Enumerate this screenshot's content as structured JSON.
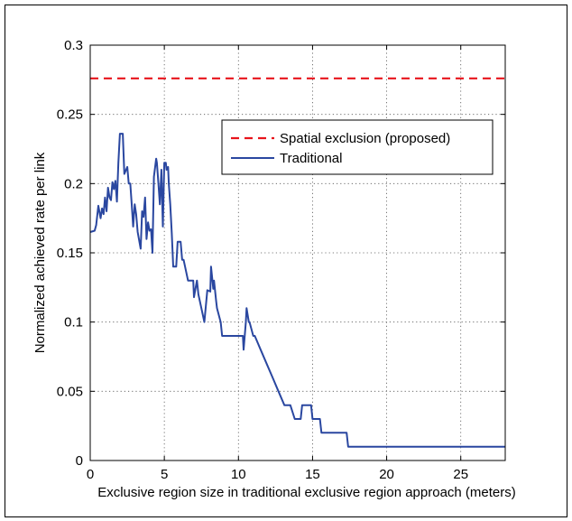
{
  "chart_data": {
    "type": "line",
    "xlabel": "Exclusive region size in traditional exclusive region approach (meters)",
    "ylabel": "Normalized achieved rate per link",
    "xlim": [
      0,
      28
    ],
    "ylim": [
      0,
      0.3
    ],
    "xticks": [
      0,
      5,
      10,
      15,
      20,
      25
    ],
    "xtick_labels": [
      "0",
      "5",
      "10",
      "15",
      "20",
      "25"
    ],
    "yticks": [
      0,
      0.05,
      0.1,
      0.15,
      0.2,
      0.25,
      0.3
    ],
    "ytick_labels": [
      "0",
      "0.05",
      "0.1",
      "0.15",
      "0.2",
      "0.25",
      "0.3"
    ],
    "grid": true,
    "legend_position": "upper-right",
    "series": [
      {
        "name": "Spatial exclusion (proposed)",
        "color": "#e8141c",
        "style": "dashed",
        "x": [
          0,
          28
        ],
        "y": [
          0.276,
          0.276
        ]
      },
      {
        "name": "Traditional",
        "color": "#2a47a0",
        "style": "solid",
        "x": [
          0,
          0.3,
          0.4,
          0.55,
          0.7,
          0.8,
          0.9,
          1.0,
          1.1,
          1.2,
          1.3,
          1.4,
          1.5,
          1.6,
          1.7,
          1.8,
          1.9,
          2.0,
          2.1,
          2.2,
          2.3,
          2.5,
          2.6,
          2.7,
          2.8,
          2.9,
          3.0,
          3.1,
          3.2,
          3.4,
          3.5,
          3.6,
          3.7,
          3.8,
          3.9,
          4.0,
          4.1,
          4.2,
          4.3,
          4.45,
          4.5,
          4.6,
          4.7,
          4.8,
          4.9,
          5.0,
          5.1,
          5.15,
          5.25,
          5.3,
          5.4,
          5.5,
          5.6,
          5.7,
          5.8,
          5.9,
          6.1,
          6.2,
          6.3,
          6.6,
          6.7,
          6.95,
          7.0,
          7.2,
          7.3,
          7.5,
          7.7,
          7.9,
          8.1,
          8.15,
          8.3,
          8.35,
          8.5,
          8.55,
          8.8,
          8.9,
          9.3,
          10.3,
          10.35,
          10.5,
          10.55,
          10.7,
          10.75,
          11.0,
          11.1,
          11.5,
          11.9,
          12.3,
          12.7,
          13.1,
          13.4,
          13.5,
          13.8,
          13.9,
          14.2,
          14.3,
          14.9,
          15.0,
          15.5,
          15.6,
          15.7,
          16.7,
          17.3,
          17.4,
          18.0,
          20.0,
          22.0,
          24.0,
          26.0,
          28.0
        ],
        "y": [
          0.165,
          0.166,
          0.17,
          0.184,
          0.175,
          0.182,
          0.178,
          0.19,
          0.18,
          0.197,
          0.19,
          0.188,
          0.201,
          0.196,
          0.202,
          0.187,
          0.215,
          0.236,
          0.236,
          0.236,
          0.207,
          0.212,
          0.2,
          0.2,
          0.185,
          0.169,
          0.185,
          0.178,
          0.165,
          0.153,
          0.18,
          0.176,
          0.19,
          0.16,
          0.172,
          0.166,
          0.167,
          0.15,
          0.205,
          0.218,
          0.215,
          0.2,
          0.185,
          0.21,
          0.169,
          0.215,
          0.215,
          0.21,
          0.212,
          0.2,
          0.185,
          0.164,
          0.14,
          0.14,
          0.14,
          0.158,
          0.158,
          0.145,
          0.145,
          0.13,
          0.13,
          0.13,
          0.118,
          0.13,
          0.12,
          0.11,
          0.1,
          0.123,
          0.122,
          0.14,
          0.124,
          0.13,
          0.115,
          0.11,
          0.1,
          0.09,
          0.09,
          0.09,
          0.08,
          0.1,
          0.11,
          0.1,
          0.1,
          0.09,
          0.09,
          0.08,
          0.07,
          0.06,
          0.05,
          0.04,
          0.04,
          0.04,
          0.03,
          0.03,
          0.03,
          0.04,
          0.04,
          0.03,
          0.03,
          0.02,
          0.02,
          0.02,
          0.02,
          0.01,
          0.01,
          0.01,
          0.01,
          0.01,
          0.01,
          0.01
        ]
      }
    ]
  }
}
